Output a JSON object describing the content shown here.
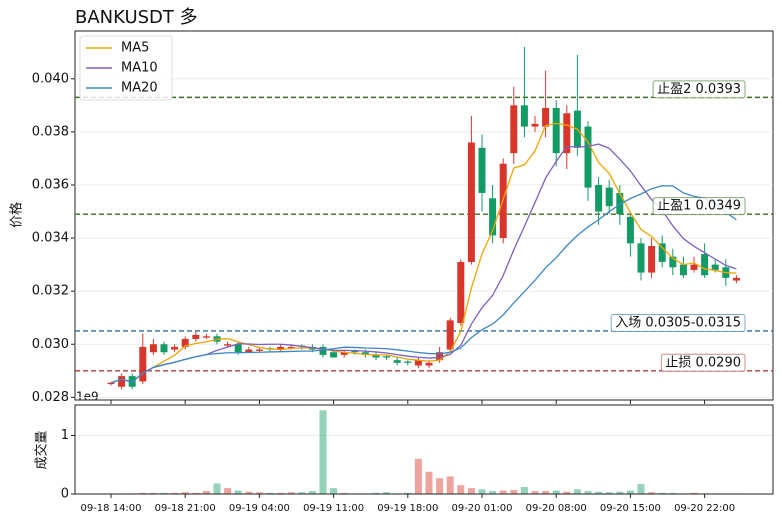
{
  "chart_data": [
    {
      "type": "candlestick",
      "title": "BANKUSDT 多",
      "ylabel": "价格",
      "categories": [
        "09-18 14:00",
        null,
        null,
        null,
        null,
        null,
        null,
        "09-18 21:00",
        null,
        null,
        null,
        null,
        null,
        null,
        "09-19 04:00",
        null,
        null,
        null,
        null,
        null,
        null,
        "09-19 11:00",
        null,
        null,
        null,
        null,
        null,
        null,
        "09-19 18:00",
        null,
        null,
        null,
        null,
        null,
        null,
        "09-20 01:00",
        null,
        null,
        null,
        null,
        null,
        null,
        "09-20 08:00",
        null,
        null,
        null,
        null,
        null,
        null,
        "09-20 15:00",
        null,
        null,
        null,
        null,
        null,
        null,
        "09-20 22:00",
        null,
        null,
        null
      ],
      "open": [
        0.0285,
        0.0284,
        0.0288,
        0.0286,
        0.0297,
        0.03,
        0.0298,
        0.0299,
        0.0302,
        0.03025,
        0.0303,
        0.02995,
        0.03,
        0.0297,
        0.02975,
        0.02985,
        0.0298,
        0.02985,
        0.02995,
        0.0299,
        0.0299,
        0.0297,
        0.0296,
        0.02975,
        0.0297,
        0.0296,
        0.02955,
        0.0294,
        0.02935,
        0.0292,
        0.0292,
        0.0294,
        0.0298,
        0.0308,
        0.0331,
        0.0374,
        0.0355,
        0.034,
        0.0372,
        0.039,
        0.0382,
        0.0382,
        0.0389,
        0.0372,
        0.0388,
        0.0382,
        0.036,
        0.0359,
        0.0357,
        0.0348,
        0.0338,
        0.0327,
        0.0338,
        0.0333,
        0.033,
        0.0328,
        0.0334,
        0.033,
        0.0329,
        0.0324
      ],
      "high": [
        0.02858,
        0.0289,
        0.0289,
        0.0304,
        0.0302,
        0.0301,
        0.03,
        0.0303,
        0.0305,
        0.0304,
        0.0304,
        0.0301,
        0.0301,
        0.0299,
        0.0299,
        0.0299,
        0.03,
        0.03,
        0.03,
        0.03,
        0.03,
        0.0298,
        0.0298,
        0.0298,
        0.0298,
        0.0297,
        0.0296,
        0.0295,
        0.0294,
        0.0295,
        0.0294,
        0.0299,
        0.031,
        0.0332,
        0.0386,
        0.0379,
        0.036,
        0.037,
        0.0397,
        0.0412,
        0.0386,
        0.0403,
        0.0392,
        0.039,
        0.0409,
        0.0384,
        0.0363,
        0.0362,
        0.036,
        0.035,
        0.034,
        0.034,
        0.0341,
        0.0336,
        0.0333,
        0.0333,
        0.0338,
        0.0332,
        0.0332,
        0.0326
      ],
      "low": [
        0.02845,
        0.0283,
        0.0283,
        0.0285,
        0.0296,
        0.0296,
        0.0297,
        0.0298,
        0.0301,
        0.0302,
        0.03,
        0.0299,
        0.0296,
        0.0297,
        0.0297,
        0.0297,
        0.0297,
        0.0298,
        0.0298,
        0.0297,
        0.0295,
        0.0295,
        0.0295,
        0.0296,
        0.0295,
        0.0294,
        0.0294,
        0.0292,
        0.0292,
        0.0291,
        0.0291,
        0.0293,
        0.0297,
        0.0307,
        0.033,
        0.035,
        0.0338,
        0.0338,
        0.0368,
        0.0378,
        0.038,
        0.0378,
        0.0367,
        0.0366,
        0.0371,
        0.0354,
        0.0345,
        0.0349,
        0.0345,
        0.0333,
        0.0324,
        0.0325,
        0.0329,
        0.0326,
        0.0325,
        0.0327,
        0.0325,
        0.0327,
        0.0322,
        0.0323
      ],
      "close": [
        0.02855,
        0.0288,
        0.0284,
        0.0299,
        0.03,
        0.0297,
        0.0299,
        0.0302,
        0.03035,
        0.0303,
        0.0301,
        0.03,
        0.0297,
        0.0298,
        0.0298,
        0.0298,
        0.0299,
        0.0299,
        0.0299,
        0.0298,
        0.0296,
        0.0295,
        0.0297,
        0.0297,
        0.0296,
        0.0295,
        0.0295,
        0.0293,
        0.0293,
        0.0294,
        0.0293,
        0.0297,
        0.0309,
        0.0331,
        0.0376,
        0.0357,
        0.0341,
        0.0368,
        0.039,
        0.0382,
        0.0383,
        0.0389,
        0.0372,
        0.0387,
        0.0374,
        0.0359,
        0.035,
        0.0352,
        0.0349,
        0.0338,
        0.0327,
        0.0337,
        0.0331,
        0.0329,
        0.0326,
        0.033,
        0.0326,
        0.0328,
        0.0325,
        0.0325
      ],
      "up_color": "#d8362b",
      "down_color": "#139b65",
      "series": [
        {
          "name": "MA5",
          "color": "#f0a500",
          "values": [
            0.02855,
            0.02868,
            0.02858,
            0.02891,
            0.02913,
            0.02936,
            0.02958,
            0.02994,
            0.03003,
            0.03009,
            0.03019,
            0.03021,
            0.03009,
            0.02998,
            0.02988,
            0.02982,
            0.0298,
            0.02984,
            0.02986,
            0.02986,
            0.02982,
            0.02974,
            0.0297,
            0.02966,
            0.02962,
            0.0296,
            0.0296,
            0.02952,
            0.02944,
            0.0294,
            0.02936,
            0.0294,
            0.02972,
            0.03048,
            0.03212,
            0.0334,
            0.03428,
            0.03546,
            0.03664,
            0.03676,
            0.03728,
            0.03824,
            0.03832,
            0.03826,
            0.0381,
            0.03762,
            0.03684,
            0.03644,
            0.03568,
            0.03496,
            0.03432,
            0.03406,
            0.03364,
            0.03324,
            0.033,
            0.03306,
            0.03284,
            0.03278,
            0.0327,
            0.03268
          ]
        },
        {
          "name": "MA10",
          "color": "#7e5fc4",
          "values": [
            0.02855,
            0.02868,
            0.02858,
            0.02891,
            0.02913,
            0.02923,
            0.02932,
            0.02943,
            0.02953,
            0.02961,
            0.02977,
            0.02989,
            0.03002,
            0.03001,
            0.02999,
            0.03,
            0.03,
            0.02997,
            0.02992,
            0.02987,
            0.02982,
            0.02977,
            0.02977,
            0.02976,
            0.02974,
            0.02971,
            0.02967,
            0.02961,
            0.02955,
            0.02951,
            0.02948,
            0.0295,
            0.02962,
            0.02996,
            0.03076,
            0.03138,
            0.03184,
            0.03259,
            0.03356,
            0.03444,
            0.03534,
            0.03626,
            0.03689,
            0.03745,
            0.03743,
            0.03745,
            0.03754,
            0.03738,
            0.03697,
            0.03653,
            0.03597,
            0.03545,
            0.03504,
            0.03446,
            0.03398,
            0.03369,
            0.03345,
            0.03321,
            0.03297,
            0.03284
          ]
        },
        {
          "name": "MA20",
          "color": "#3d87c9",
          "values": [
            0.02855,
            0.02868,
            0.02858,
            0.02891,
            0.02913,
            0.02923,
            0.02932,
            0.02943,
            0.02953,
            0.02961,
            0.02965,
            0.02968,
            0.02968,
            0.02969,
            0.0297,
            0.02971,
            0.02972,
            0.02973,
            0.02974,
            0.02974,
            0.02979,
            0.02983,
            0.02989,
            0.02988,
            0.02986,
            0.02985,
            0.02983,
            0.02979,
            0.02974,
            0.02969,
            0.02965,
            0.02964,
            0.0297,
            0.02986,
            0.03025,
            0.03055,
            0.03076,
            0.0311,
            0.03156,
            0.03198,
            0.03241,
            0.03288,
            0.03326,
            0.03371,
            0.0341,
            0.03442,
            0.03469,
            0.03499,
            0.03527,
            0.03549,
            0.03566,
            0.03586,
            0.03597,
            0.03596,
            0.0357,
            0.03557,
            0.0355,
            0.0353,
            0.03497,
            0.03469
          ]
        }
      ],
      "hlines": [
        {
          "value": 0.0393,
          "label": "止盈2 0.0393",
          "color": "#3c6e1d"
        },
        {
          "value": 0.0349,
          "label": "止盈1 0.0349",
          "color": "#3c6e1d"
        },
        {
          "value": 0.0305,
          "label": "入场 0.0305-0.0315",
          "color": "#2b6ea6"
        },
        {
          "value": 0.029,
          "label": "止损 0.0290",
          "color": "#b23a3a"
        }
      ],
      "ylim": [
        0.0279,
        0.0418
      ],
      "yticks": [
        0.028,
        {
          "value": 0.03,
          "label": "0.030"
        },
        0.032,
        0.034,
        0.036,
        0.038,
        {
          "value": 0.04,
          "label": "0.040"
        }
      ],
      "grid": true,
      "legend": "upper left"
    },
    {
      "type": "bar",
      "ylabel": "成交量",
      "offset_label": "1e9",
      "values": [
        0.005,
        0.01,
        0.01,
        0.02,
        0.02,
        0.02,
        0.02,
        0.03,
        0.02,
        0.05,
        0.18,
        0.1,
        0.06,
        0.04,
        0.03,
        0.02,
        0.02,
        0.03,
        0.03,
        0.05,
        1.43,
        0.1,
        0.02,
        0.01,
        0.01,
        0.02,
        0.03,
        0.01,
        0.02,
        0.6,
        0.38,
        0.27,
        0.3,
        0.15,
        0.1,
        0.08,
        0.05,
        0.06,
        0.07,
        0.12,
        0.05,
        0.05,
        0.06,
        0.04,
        0.08,
        0.05,
        0.04,
        0.03,
        0.04,
        0.06,
        0.17,
        0.03,
        0.02,
        0.02,
        0.01,
        0.02,
        0.01,
        0.01,
        0.01,
        0.01
      ],
      "ylim": [
        0,
        1.52
      ],
      "yticks": [
        0,
        1
      ],
      "grid": true
    }
  ]
}
